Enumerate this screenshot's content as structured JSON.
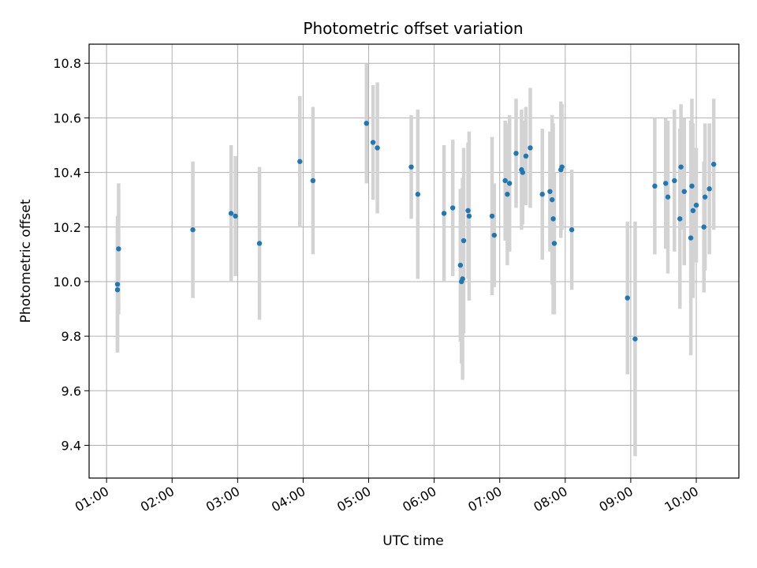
{
  "chart_data": {
    "type": "scatter",
    "title": "Photometric offset variation",
    "xlabel": "UTC time",
    "ylabel": "Photometric offset",
    "grid": true,
    "colors": {
      "point": "#1f77b4",
      "errorbar": "#d3d3d3",
      "grid": "#b0b0b0"
    },
    "xlim": [
      "00:44",
      "10:39"
    ],
    "ylim": [
      9.28,
      10.87
    ],
    "xticks": [
      "01:00",
      "02:00",
      "03:00",
      "04:00",
      "05:00",
      "06:00",
      "07:00",
      "08:00",
      "09:00",
      "10:00"
    ],
    "yticks": [
      "9.4",
      "9.6",
      "9.8",
      "10.0",
      "10.2",
      "10.4",
      "10.6",
      "10.8"
    ],
    "series": [
      {
        "x": [
          "01:10",
          "01:10",
          "01:11",
          "02:19",
          "02:54",
          "02:58",
          "03:20",
          "03:57",
          "04:09",
          "04:58",
          "05:04",
          "05:08",
          "05:39",
          "05:45",
          "06:09",
          "06:17",
          "06:24",
          "06:25",
          "06:26",
          "06:27",
          "06:31",
          "06:32",
          "06:53",
          "06:55",
          "07:05",
          "07:07",
          "07:09",
          "07:15",
          "07:20",
          "07:21",
          "07:24",
          "07:28",
          "07:39",
          "07:46",
          "07:48",
          "07:49",
          "07:50",
          "07:56",
          "07:57",
          "08:06",
          "08:57",
          "09:04",
          "09:22",
          "09:32",
          "09:34",
          "09:40",
          "09:45",
          "09:46",
          "09:49",
          "09:55",
          "09:56",
          "09:57",
          "10:00",
          "10:07",
          "10:08",
          "10:12",
          "10:16"
        ],
        "y": [
          9.97,
          9.99,
          10.12,
          10.19,
          10.25,
          10.24,
          10.14,
          10.44,
          10.37,
          10.58,
          10.51,
          10.49,
          10.42,
          10.32,
          10.25,
          10.27,
          10.06,
          10.0,
          10.01,
          10.15,
          10.26,
          10.24,
          10.24,
          10.17,
          10.37,
          10.32,
          10.36,
          10.47,
          10.41,
          10.4,
          10.46,
          10.49,
          10.32,
          10.33,
          10.3,
          10.23,
          10.14,
          10.41,
          10.42,
          10.19,
          9.94,
          9.79,
          10.35,
          10.36,
          10.31,
          10.37,
          10.23,
          10.42,
          10.33,
          10.16,
          10.35,
          10.26,
          10.28,
          10.2,
          10.31,
          10.34,
          10.43
        ],
        "err": [
          0.23,
          0.25,
          0.24,
          0.25,
          0.25,
          0.22,
          0.28,
          0.24,
          0.27,
          0.22,
          0.21,
          0.24,
          0.19,
          0.31,
          0.25,
          0.25,
          0.28,
          0.3,
          0.37,
          0.34,
          0.25,
          0.31,
          0.29,
          0.19,
          0.22,
          0.26,
          0.25,
          0.2,
          0.22,
          0.19,
          0.18,
          0.22,
          0.24,
          0.22,
          0.31,
          0.35,
          0.26,
          0.25,
          0.23,
          0.22,
          0.28,
          0.43,
          0.25,
          0.24,
          0.28,
          0.26,
          0.33,
          0.23,
          0.27,
          0.43,
          0.32,
          0.32,
          0.21,
          0.24,
          0.27,
          0.24,
          0.24
        ]
      }
    ]
  }
}
